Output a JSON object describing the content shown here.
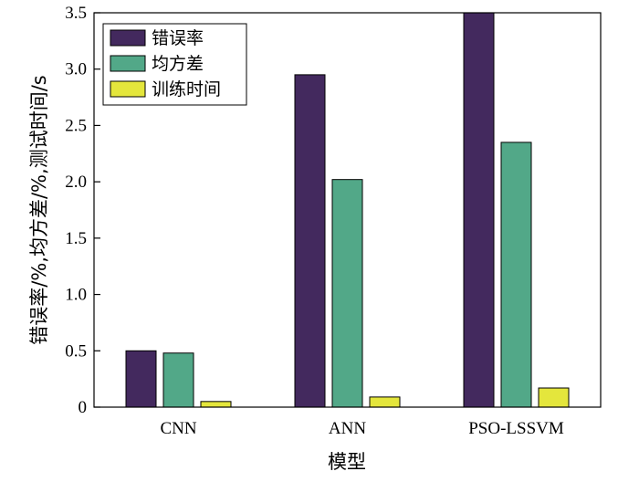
{
  "chart_data": {
    "type": "bar",
    "categories": [
      "CNN",
      "ANN",
      "PSO-LSSVM"
    ],
    "series": [
      {
        "name": "错误率",
        "values": [
          0.5,
          2.95,
          3.5
        ],
        "color": "#43295e"
      },
      {
        "name": "均方差",
        "values": [
          0.48,
          2.02,
          2.35
        ],
        "color": "#52a888"
      },
      {
        "name": "训练时间",
        "values": [
          0.05,
          0.09,
          0.17
        ],
        "color": "#e4e63c"
      }
    ],
    "xlabel": "模型",
    "ylabel": "错误率/%,均方差/%,测试时间/s",
    "ylim": [
      0,
      3.5
    ],
    "yticks": [
      "0",
      "0.5",
      "1.0",
      "1.5",
      "2.0",
      "2.5",
      "3.0",
      "3.5"
    ],
    "legend_position": "top-left",
    "grid": false
  }
}
